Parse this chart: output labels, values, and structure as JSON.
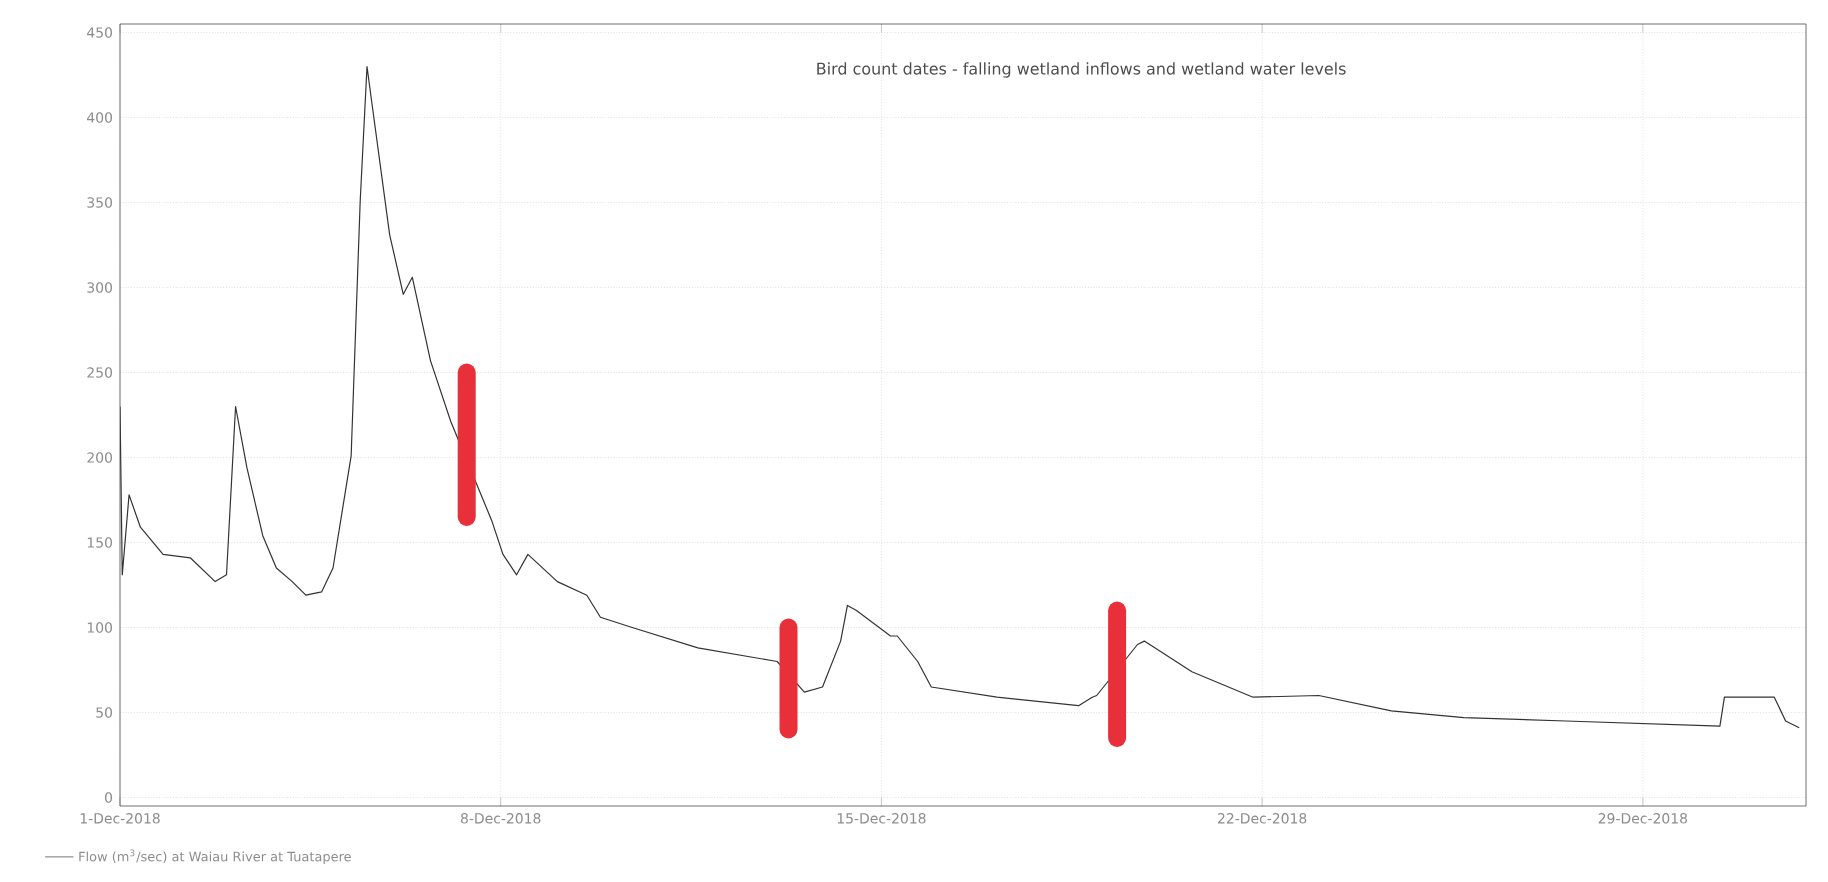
{
  "chart_data": {
    "type": "line",
    "annotations": [
      "Bird count dates - falling wetland inflows and wetland water levels"
    ],
    "xlim": [
      "2018-12-01T00:00",
      "2019-01-01T00:00"
    ],
    "xticks": [
      {
        "value": "2018-12-01",
        "label": "1-Dec-2018"
      },
      {
        "value": "2018-12-08",
        "label": "8-Dec-2018"
      },
      {
        "value": "2018-12-15",
        "label": "15-Dec-2018"
      },
      {
        "value": "2018-12-22",
        "label": "22-Dec-2018"
      },
      {
        "value": "2018-12-29",
        "label": "29-Dec-2018"
      }
    ],
    "ylim": [
      -5,
      455
    ],
    "yticks": [
      0,
      50,
      100,
      150,
      200,
      250,
      300,
      350,
      400,
      450
    ],
    "grid": true,
    "legend": "bottom left",
    "series": [
      {
        "name": "Flow (m$^{3}$/sec) at Waiau River at Tuatapere",
        "color": "#333333",
        "x": [
          "2018-12-01T00:00",
          "2018-12-01T01:00",
          "2018-12-01T04:00",
          "2018-12-01T09:00",
          "2018-12-01T19:00",
          "2018-12-02T07:00",
          "2018-12-02T18:00",
          "2018-12-02T23:00",
          "2018-12-03T03:00",
          "2018-12-03T08:00",
          "2018-12-03T15:00",
          "2018-12-03T21:00",
          "2018-12-04T04:00",
          "2018-12-04T10:00",
          "2018-12-04T17:00",
          "2018-12-04T22:00",
          "2018-12-05T06:00",
          "2018-12-05T10:00",
          "2018-12-05T13:00",
          "2018-12-05T15:00",
          "2018-12-05T23:00",
          "2018-12-06T05:00",
          "2018-12-06T09:00",
          "2018-12-06T17:00",
          "2018-12-07T02:00",
          "2018-12-07T20:00",
          "2018-12-08T01:00",
          "2018-12-08T07:00",
          "2018-12-08T12:00",
          "2018-12-09T01:00",
          "2018-12-09T14:00",
          "2018-12-09T20:00",
          "2018-12-10T10:00",
          "2018-12-11T15:00",
          "2018-12-13T02:00",
          "2018-12-13T14:00",
          "2018-12-13T22:00",
          "2018-12-14T06:00",
          "2018-12-14T09:00",
          "2018-12-14T13:00",
          "2018-12-15T04:00",
          "2018-12-15T07:00",
          "2018-12-15T16:00",
          "2018-12-15T22:00",
          "2018-12-17T03:00",
          "2018-12-18T15:00",
          "2018-12-18T21:00",
          "2018-12-18T23:00",
          "2018-12-19T17:00",
          "2018-12-19T20:00",
          "2018-12-20T17:00",
          "2018-12-21T20:00",
          "2018-12-23T01:00",
          "2018-12-24T09:00",
          "2018-12-25T17:00",
          "2018-12-27T14:00",
          "2018-12-30T10:00",
          "2018-12-30T12:00",
          "2018-12-31T10:00",
          "2018-12-31T15:00",
          "2018-12-31T21:00"
        ],
        "values": [
          230,
          131,
          178,
          159,
          143,
          141,
          127,
          131,
          230,
          194,
          154,
          135,
          127,
          119,
          121,
          135,
          201,
          351,
          430,
          410,
          331,
          296,
          306,
          257,
          221,
          163,
          143,
          131,
          143,
          127,
          119,
          106,
          100,
          88,
          80,
          62,
          65,
          92,
          113,
          110,
          95,
          95,
          80,
          65,
          59,
          54,
          59,
          60,
          90,
          92,
          74,
          59,
          60,
          51,
          47,
          45,
          42,
          59,
          59,
          45,
          41
        ]
      },
      {
        "color": "#e8303a",
        "x": [
          "2018-12-07T09:00",
          "2018-12-07T09:00"
        ],
        "values": [
          250,
          165
        ]
      },
      {
        "color": "#e8303a",
        "x": [
          "2018-12-13T07:00",
          "2018-12-13T07:00"
        ],
        "values": [
          100,
          40
        ]
      },
      {
        "color": "#e8303a",
        "x": [
          "2018-12-19T08:00",
          "2018-12-19T08:00"
        ],
        "values": [
          110,
          35
        ]
      }
    ]
  }
}
